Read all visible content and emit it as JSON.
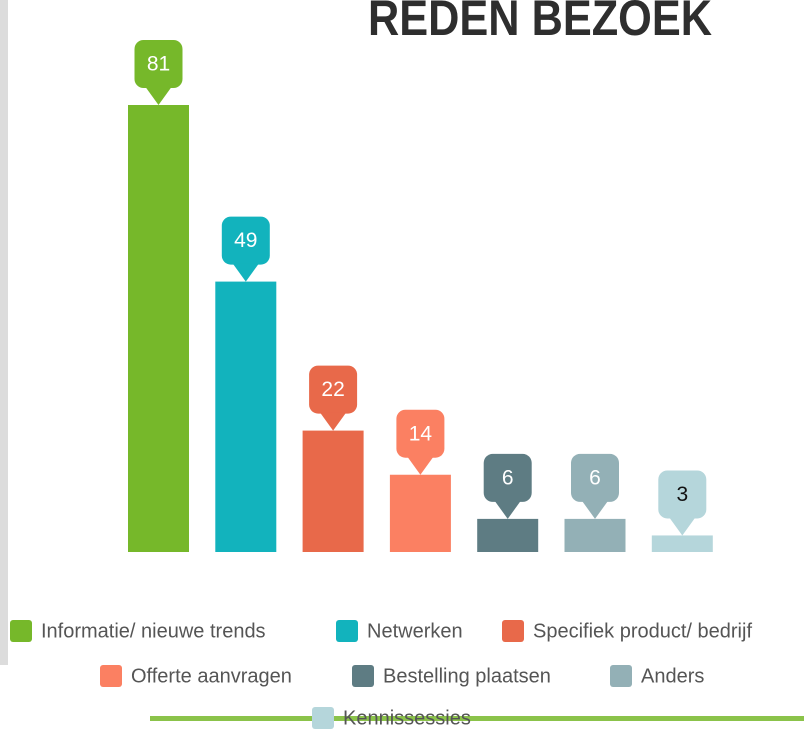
{
  "chart_data": {
    "type": "bar",
    "title": "REDEN BEZOEK",
    "categories": [
      "Informatie/ nieuwe trends",
      "Netwerken",
      "Specifiek product/ bedrijf",
      "Offerte aanvragen",
      "Bestelling plaatsen",
      "Anders",
      "Kennissessies"
    ],
    "values": [
      81,
      49,
      22,
      14,
      6,
      6,
      3
    ],
    "colors": [
      "#76b82a",
      "#12b3bd",
      "#e8694a",
      "#fb8062",
      "#5e7c83",
      "#93b0b6",
      "#b5d6db"
    ],
    "legend": true
  }
}
